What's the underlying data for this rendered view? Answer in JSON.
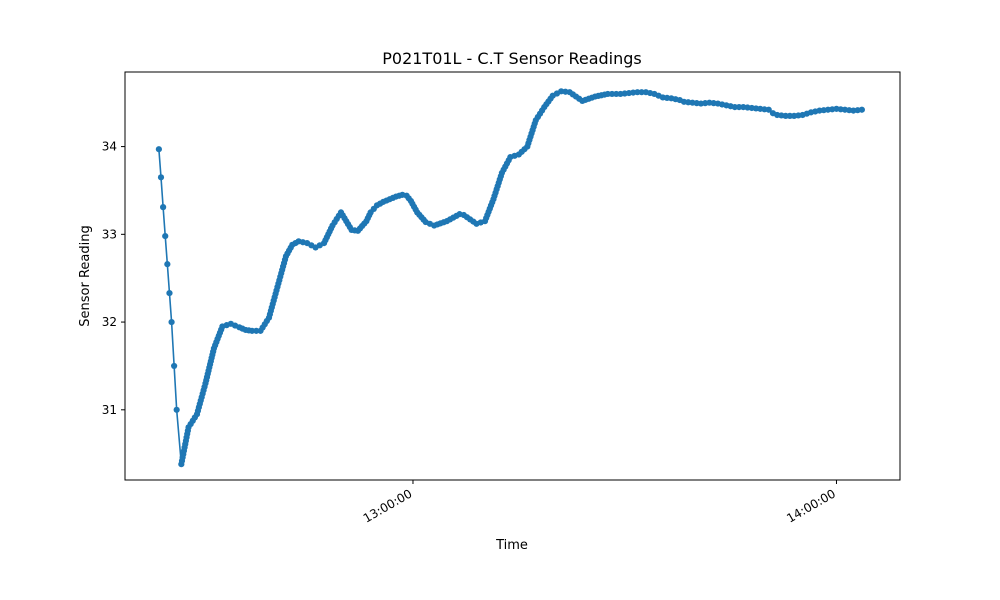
{
  "chart_data": {
    "type": "line",
    "title": "P021T01L - C.T Sensor Readings",
    "xlabel": "Time",
    "ylabel": "Sensor Reading",
    "xlim": [
      12.32,
      14.15
    ],
    "ylim": [
      30.2,
      34.85
    ],
    "x_ticks": [
      {
        "value": 13.0,
        "label": "13:00:00"
      },
      {
        "value": 14.0,
        "label": "14:00:00"
      }
    ],
    "y_ticks": [
      {
        "value": 31,
        "label": "31"
      },
      {
        "value": 32,
        "label": "32"
      },
      {
        "value": 33,
        "label": "33"
      },
      {
        "value": 34,
        "label": "34"
      }
    ],
    "grid": false,
    "color": "#1f77b4",
    "marker": "circle",
    "keypoints_description": "Series anchor points (x in decimal hours, y in sensor units); markers drawn densely along the curve",
    "series": [
      {
        "name": "C.T",
        "x": [
          12.4,
          12.405,
          12.41,
          12.415,
          12.42,
          12.425,
          12.43,
          12.436,
          12.442,
          12.453,
          12.47,
          12.49,
          12.51,
          12.53,
          12.55,
          12.57,
          12.59,
          12.605,
          12.62,
          12.64,
          12.66,
          12.68,
          12.7,
          12.715,
          12.73,
          12.75,
          12.77,
          12.79,
          12.81,
          12.83,
          12.855,
          12.87,
          12.89,
          12.9,
          12.915,
          12.93,
          12.945,
          12.96,
          12.975,
          12.985,
          12.995,
          13.01,
          13.03,
          13.05,
          13.08,
          13.11,
          13.12,
          13.135,
          13.15,
          13.17,
          13.19,
          13.21,
          13.23,
          13.25,
          13.27,
          13.29,
          13.31,
          13.33,
          13.35,
          13.37,
          13.4,
          13.43,
          13.46,
          13.49,
          13.51,
          13.53,
          13.55,
          13.57,
          13.58,
          13.59,
          13.61,
          13.63,
          13.64,
          13.66,
          13.68,
          13.7,
          13.72,
          13.74,
          13.76,
          13.78,
          13.8,
          13.82,
          13.84,
          13.85,
          13.86,
          13.88,
          13.9,
          13.92,
          13.94,
          13.96,
          13.98,
          14.0,
          14.02,
          14.04,
          14.06
        ],
        "y": [
          33.97,
          33.65,
          33.31,
          32.98,
          32.66,
          32.33,
          32.0,
          31.5,
          31.0,
          30.38,
          30.8,
          30.95,
          31.3,
          31.7,
          31.95,
          31.98,
          31.94,
          31.91,
          31.9,
          31.9,
          32.05,
          32.4,
          32.75,
          32.88,
          32.92,
          32.9,
          32.85,
          32.9,
          33.1,
          33.25,
          33.05,
          33.04,
          33.15,
          33.25,
          33.33,
          33.37,
          33.4,
          33.43,
          33.45,
          33.44,
          33.38,
          33.25,
          33.14,
          33.1,
          33.15,
          33.23,
          33.22,
          33.17,
          33.12,
          33.15,
          33.4,
          33.7,
          33.88,
          33.91,
          34.0,
          34.3,
          34.45,
          34.58,
          34.63,
          34.62,
          34.52,
          34.57,
          34.6,
          34.6,
          34.61,
          34.62,
          34.62,
          34.6,
          34.58,
          34.56,
          34.55,
          34.53,
          34.51,
          34.5,
          34.49,
          34.5,
          34.49,
          34.47,
          34.45,
          34.45,
          34.44,
          34.43,
          34.42,
          34.38,
          34.36,
          34.35,
          34.35,
          34.36,
          34.39,
          34.41,
          34.42,
          34.43,
          34.42,
          34.41,
          34.42
        ]
      }
    ]
  }
}
